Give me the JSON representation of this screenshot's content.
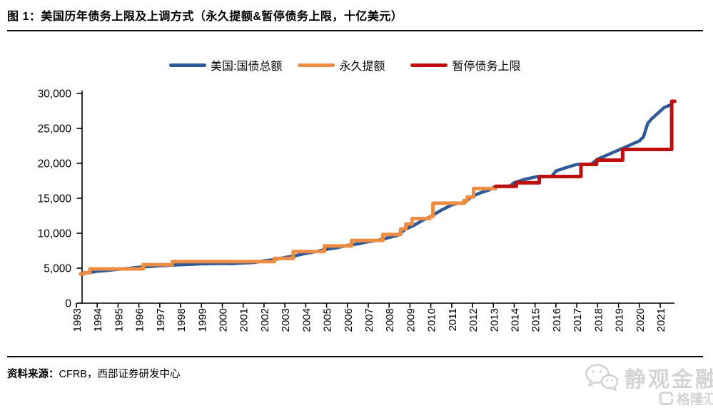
{
  "figure": {
    "title": "图 1：美国历年债务上限及上调方式（永久提额&暂停债务上限，十亿美元）",
    "source_label": "资料来源：",
    "source_text": "CFRB，西部证券研发中心"
  },
  "watermark": {
    "wechat_name": "静观金融",
    "platform_name": "格隆汇"
  },
  "colors": {
    "debt_line": "#305A97",
    "permanent_increase": "#ED8C43",
    "suspension": "#BE0E0E",
    "axis": "#000000",
    "watermark_gray": "#d4d4d4"
  },
  "chart_data": {
    "type": "line",
    "title": "美国历年债务上限及上调方式",
    "unit": "十亿美元",
    "xlabel": "",
    "ylabel": "",
    "grid": false,
    "legend_position": "top",
    "ylim": [
      0,
      30000
    ],
    "yticks": [
      0,
      5000,
      10000,
      15000,
      20000,
      25000,
      30000
    ],
    "ytick_labels": [
      "0",
      "5,000",
      "10,000",
      "15,000",
      "20,000",
      "25,000",
      "30,000"
    ],
    "x_tick_labels": [
      "1993",
      "1994",
      "1995",
      "1996",
      "1997",
      "1998",
      "1999",
      "2000",
      "2001",
      "2002",
      "2003",
      "2004",
      "2005",
      "2006",
      "2007",
      "2008",
      "2009",
      "2010",
      "2011",
      "2012",
      "2013",
      "2014",
      "2015",
      "2016",
      "2017",
      "2018",
      "2019",
      "2020",
      "2021"
    ],
    "series": [
      {
        "name": "美国:国债总额",
        "id": "us-total-debt",
        "type": "line",
        "color": "#305A97",
        "points": [
          [
            1993.2,
            4190
          ],
          [
            1993.6,
            4360
          ],
          [
            1994,
            4560
          ],
          [
            1994.5,
            4680
          ],
          [
            1995,
            4850
          ],
          [
            1995.5,
            4970
          ],
          [
            1996,
            5120
          ],
          [
            1996.5,
            5230
          ],
          [
            1997,
            5350
          ],
          [
            1997.5,
            5430
          ],
          [
            1998,
            5500
          ],
          [
            1998.5,
            5550
          ],
          [
            1999,
            5620
          ],
          [
            1999.5,
            5650
          ],
          [
            2000,
            5670
          ],
          [
            2000.5,
            5650
          ],
          [
            2001,
            5760
          ],
          [
            2001.5,
            5810
          ],
          [
            2002,
            6050
          ],
          [
            2002.5,
            6230
          ],
          [
            2003,
            6530
          ],
          [
            2003.5,
            6780
          ],
          [
            2004,
            7120
          ],
          [
            2004.5,
            7380
          ],
          [
            2005,
            7700
          ],
          [
            2005.5,
            7930
          ],
          [
            2006,
            8250
          ],
          [
            2006.5,
            8480
          ],
          [
            2007,
            8800
          ],
          [
            2007.5,
            9010
          ],
          [
            2008,
            9400
          ],
          [
            2008.4,
            9700
          ],
          [
            2008.8,
            10600
          ],
          [
            2009.2,
            11150
          ],
          [
            2009.6,
            11850
          ],
          [
            2010,
            12400
          ],
          [
            2010.5,
            13300
          ],
          [
            2011,
            14050
          ],
          [
            2011.3,
            14290
          ],
          [
            2011.6,
            14320
          ],
          [
            2011.9,
            15100
          ],
          [
            2012.3,
            15700
          ],
          [
            2012.8,
            16200
          ],
          [
            2013.1,
            16700
          ],
          [
            2013.8,
            16750
          ],
          [
            2014,
            17250
          ],
          [
            2014.5,
            17700
          ],
          [
            2015.1,
            18100
          ],
          [
            2015.8,
            18150
          ],
          [
            2016,
            18900
          ],
          [
            2016.5,
            19400
          ],
          [
            2017,
            19850
          ],
          [
            2017.7,
            19900
          ],
          [
            2018,
            20600
          ],
          [
            2018.5,
            21250
          ],
          [
            2019,
            21900
          ],
          [
            2019.5,
            22550
          ],
          [
            2020,
            23200
          ],
          [
            2020.2,
            23800
          ],
          [
            2020.4,
            25700
          ],
          [
            2020.6,
            26400
          ],
          [
            2020.9,
            27200
          ],
          [
            2021.2,
            28000
          ],
          [
            2021.55,
            28430
          ]
        ]
      },
      {
        "name": "永久提额",
        "id": "permanent-increase",
        "type": "step",
        "color": "#ED8C43",
        "end_year": 2013.1,
        "points": [
          [
            1993.2,
            4145
          ],
          [
            1993.35,
            4370
          ],
          [
            1993.65,
            4900
          ],
          [
            1996.2,
            5500
          ],
          [
            1997.6,
            5950
          ],
          [
            2002.5,
            6400
          ],
          [
            2003.4,
            7384
          ],
          [
            2004.9,
            8184
          ],
          [
            2006.2,
            8965
          ],
          [
            2007.7,
            9815
          ],
          [
            2008.55,
            10615
          ],
          [
            2008.8,
            11315
          ],
          [
            2009.1,
            12104
          ],
          [
            2009.95,
            12394
          ],
          [
            2010.1,
            14294
          ],
          [
            2011.6,
            14694
          ],
          [
            2011.75,
            15194
          ],
          [
            2012.05,
            16394
          ]
        ]
      },
      {
        "name": "暂停债务上限",
        "id": "debt-limit-suspension",
        "type": "step",
        "color": "#BE0E0E",
        "end_year": 2021.7,
        "points": [
          [
            2013.1,
            16699
          ],
          [
            2014.1,
            17212
          ],
          [
            2015.2,
            18113
          ],
          [
            2017.2,
            19847
          ],
          [
            2017.95,
            20456
          ],
          [
            2019.2,
            21988
          ],
          [
            2021.55,
            28881
          ]
        ]
      }
    ]
  }
}
